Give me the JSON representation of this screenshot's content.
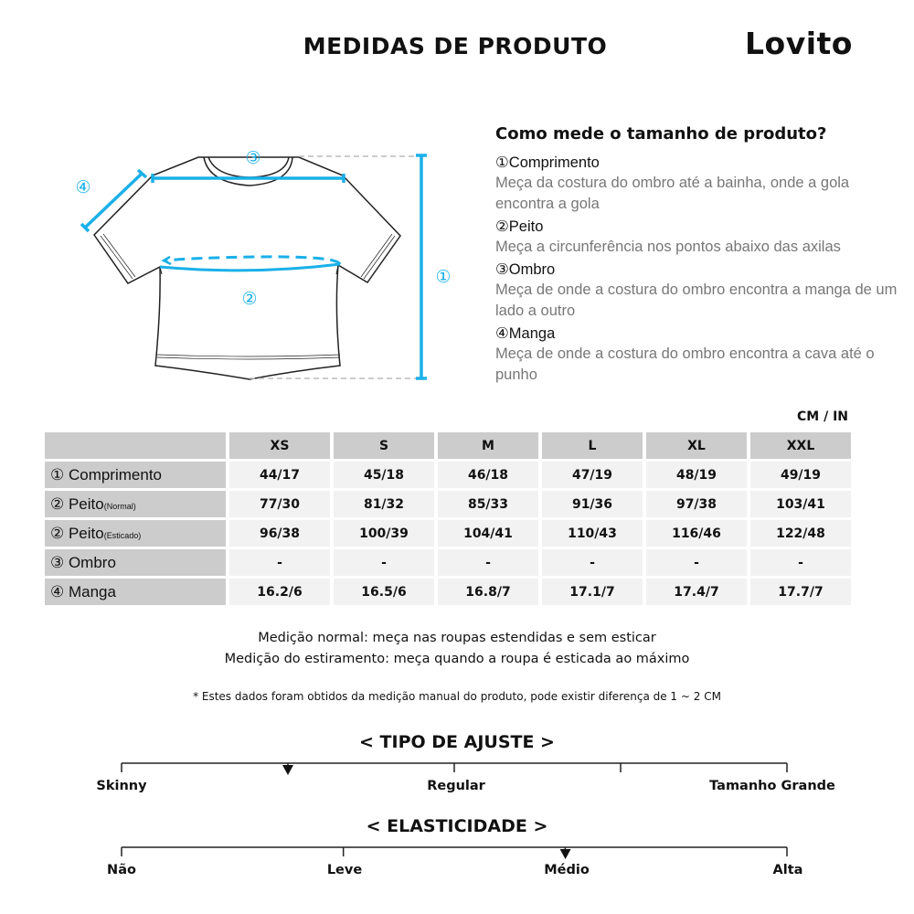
{
  "header": {
    "title": "MEDIDAS DE PRODUTO",
    "brand": "Lovito"
  },
  "colors": {
    "accent": "#1ab0e8",
    "header_cell": "#cccccc",
    "cell": "#f2f2f2"
  },
  "diagram": {
    "markers": [
      "①",
      "②",
      "③",
      "④"
    ]
  },
  "howto": {
    "title": "Como mede o tamanho de produto?",
    "items": [
      {
        "name": "①Comprimento",
        "desc": "Meça da costura do ombro até a bainha, onde a gola encontra a gola"
      },
      {
        "name": "②Peito",
        "desc": "Meça a circunferência nos pontos abaixo das axilas"
      },
      {
        "name": "③Ombro",
        "desc": "Meça de onde a costura do ombro encontra a manga de um lado a outro"
      },
      {
        "name": "④Manga",
        "desc": "Meça de onde a costura do ombro encontra a cava até o punho"
      }
    ]
  },
  "table": {
    "unit": "CM / IN",
    "sizes": [
      "XS",
      "S",
      "M",
      "L",
      "XL",
      "XXL"
    ],
    "rows": [
      {
        "label": "① Comprimento",
        "sub": "",
        "values": [
          "44/17",
          "45/18",
          "46/18",
          "47/19",
          "48/19",
          "49/19"
        ]
      },
      {
        "label": "② Peito",
        "sub": "(Normal)",
        "values": [
          "77/30",
          "81/32",
          "85/33",
          "91/36",
          "97/38",
          "103/41"
        ]
      },
      {
        "label": "② Peito",
        "sub": "(Esticado)",
        "values": [
          "96/38",
          "100/39",
          "104/41",
          "110/43",
          "116/46",
          "122/48"
        ]
      },
      {
        "label": "③ Ombro",
        "sub": "",
        "values": [
          "-",
          "-",
          "-",
          "-",
          "-",
          "-"
        ]
      },
      {
        "label": "④ Manga",
        "sub": "",
        "values": [
          "16.2/6",
          "16.5/6",
          "16.8/7",
          "17.1/7",
          "17.4/7",
          "17.7/7"
        ]
      }
    ]
  },
  "notes": {
    "normal": "Medição normal: meça nas roupas estendidas e sem esticar",
    "stretch": "Medição do estiramento: meça quando a roupa é esticada ao máximo",
    "disclaimer": "* Estes dados foram obtidos da medição manual do produto, pode existir diferença de 1 ~ 2 CM"
  },
  "fit": {
    "title": "< TIPO DE AJUSTE >",
    "labels": [
      "Skinny",
      "Regular",
      "Tamanho Grande"
    ],
    "level": 0.25
  },
  "elasticity": {
    "title": "< ELASTICIDADE >",
    "labels": [
      "Não",
      "Leve",
      "Médio",
      "Alta"
    ],
    "level": 0.667
  }
}
